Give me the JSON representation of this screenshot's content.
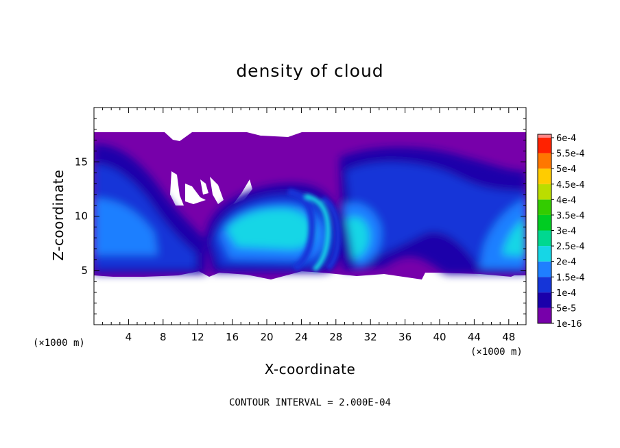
{
  "chart_data": {
    "type": "heatmap",
    "title": "density of cloud",
    "xlabel": "X-coordinate",
    "ylabel": "Z-coordinate",
    "x_unit": "(×1000 m)",
    "z_unit": "(×1000 m)",
    "xlim": [
      0,
      50
    ],
    "ylim": [
      0,
      20
    ],
    "x_ticks": [
      4,
      8,
      12,
      16,
      20,
      24,
      28,
      32,
      36,
      40,
      44,
      48
    ],
    "y_ticks": [
      5,
      10,
      15
    ],
    "colorbar": {
      "levels": [
        "1e-16",
        "5e-5",
        "1e-4",
        "1.5e-4",
        "2e-4",
        "2.5e-4",
        "3e-4",
        "3.5e-4",
        "4e-4",
        "4.5e-4",
        "5e-4",
        "5.5e-4",
        "6e-4"
      ],
      "colors": [
        "#7700aa",
        "#1a00aa",
        "#1535d8",
        "#1f7fff",
        "#16d6e6",
        "#00d890",
        "#00cc22",
        "#33cc00",
        "#bbdd00",
        "#ffcc00",
        "#ff7700",
        "#ff2200",
        "#ff8888"
      ]
    },
    "field_extent": {
      "x": [
        0,
        50
      ],
      "z": [
        4.3,
        17.7
      ]
    },
    "footer": "CONTOUR INTERVAL = 2.000E-04"
  }
}
